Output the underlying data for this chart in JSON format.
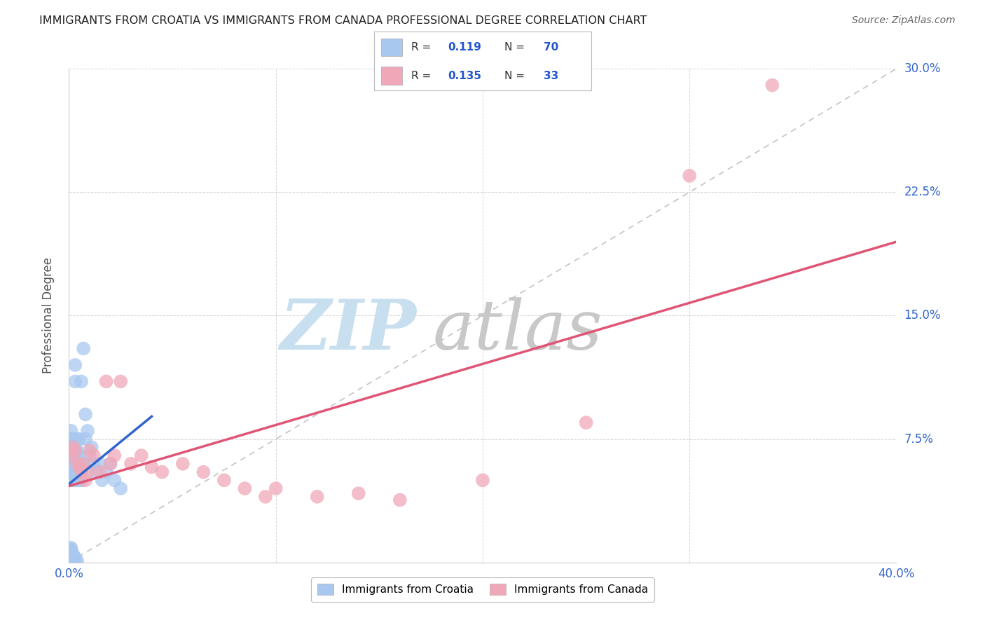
{
  "title": "IMMIGRANTS FROM CROATIA VS IMMIGRANTS FROM CANADA PROFESSIONAL DEGREE CORRELATION CHART",
  "source": "Source: ZipAtlas.com",
  "ylabel": "Professional Degree",
  "xlim": [
    0.0,
    0.4
  ],
  "ylim": [
    0.0,
    0.3
  ],
  "xtick_positions": [
    0.0,
    0.1,
    0.2,
    0.3,
    0.4
  ],
  "ytick_positions": [
    0.0,
    0.075,
    0.15,
    0.225,
    0.3
  ],
  "croatia_R": "0.119",
  "croatia_N": "70",
  "canada_R": "0.135",
  "canada_N": "33",
  "croatia_color": "#a8c8f0",
  "canada_color": "#f0a8b8",
  "croatia_line_color": "#3366cc",
  "canada_line_color": "#e05575",
  "background_color": "#ffffff",
  "grid_color": "#bbbbbb",
  "watermark_zip_color": "#c8dff0",
  "watermark_atlas_color": "#c8c8c8",
  "croatia_x": [
    0.001,
    0.001,
    0.001,
    0.001,
    0.001,
    0.001,
    0.001,
    0.001,
    0.001,
    0.001,
    0.001,
    0.001,
    0.001,
    0.001,
    0.001,
    0.001,
    0.001,
    0.001,
    0.001,
    0.001,
    0.002,
    0.002,
    0.002,
    0.002,
    0.002,
    0.002,
    0.002,
    0.002,
    0.002,
    0.002,
    0.003,
    0.003,
    0.003,
    0.003,
    0.003,
    0.003,
    0.003,
    0.003,
    0.003,
    0.003,
    0.004,
    0.004,
    0.004,
    0.004,
    0.004,
    0.004,
    0.004,
    0.005,
    0.005,
    0.005,
    0.005,
    0.005,
    0.006,
    0.006,
    0.006,
    0.007,
    0.007,
    0.008,
    0.008,
    0.009,
    0.01,
    0.011,
    0.012,
    0.013,
    0.015,
    0.016,
    0.018,
    0.02,
    0.022,
    0.025
  ],
  "croatia_y": [
    0.001,
    0.002,
    0.003,
    0.004,
    0.005,
    0.006,
    0.007,
    0.008,
    0.009,
    0.05,
    0.055,
    0.058,
    0.06,
    0.062,
    0.065,
    0.068,
    0.07,
    0.072,
    0.075,
    0.08,
    0.001,
    0.003,
    0.005,
    0.05,
    0.055,
    0.058,
    0.06,
    0.065,
    0.07,
    0.075,
    0.001,
    0.003,
    0.05,
    0.055,
    0.058,
    0.062,
    0.065,
    0.068,
    0.11,
    0.12,
    0.001,
    0.05,
    0.055,
    0.058,
    0.062,
    0.068,
    0.075,
    0.05,
    0.055,
    0.06,
    0.065,
    0.075,
    0.05,
    0.055,
    0.11,
    0.06,
    0.13,
    0.075,
    0.09,
    0.08,
    0.065,
    0.07,
    0.06,
    0.055,
    0.06,
    0.05,
    0.055,
    0.06,
    0.05,
    0.045
  ],
  "canada_x": [
    0.001,
    0.002,
    0.003,
    0.004,
    0.005,
    0.006,
    0.007,
    0.008,
    0.009,
    0.01,
    0.012,
    0.015,
    0.018,
    0.02,
    0.022,
    0.025,
    0.03,
    0.035,
    0.04,
    0.045,
    0.055,
    0.065,
    0.075,
    0.085,
    0.095,
    0.1,
    0.12,
    0.14,
    0.16,
    0.2,
    0.25,
    0.3,
    0.34
  ],
  "canada_y": [
    0.065,
    0.07,
    0.068,
    0.06,
    0.058,
    0.055,
    0.06,
    0.05,
    0.055,
    0.068,
    0.065,
    0.055,
    0.11,
    0.06,
    0.065,
    0.11,
    0.06,
    0.065,
    0.058,
    0.055,
    0.06,
    0.055,
    0.05,
    0.045,
    0.04,
    0.045,
    0.04,
    0.042,
    0.038,
    0.05,
    0.085,
    0.235,
    0.29
  ]
}
